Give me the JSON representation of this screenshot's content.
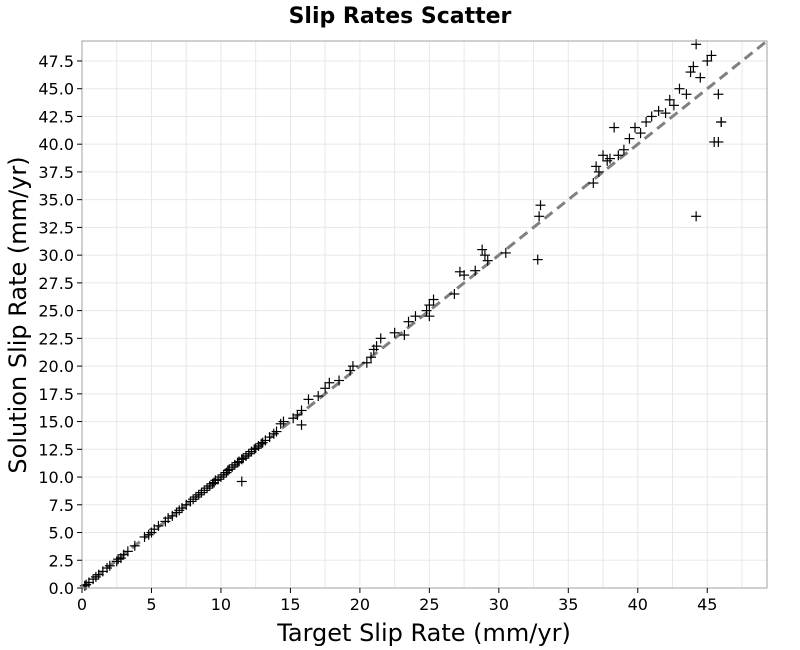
{
  "chart_data": {
    "type": "scatter",
    "title": "Slip Rates Scatter",
    "xlabel": "Target Slip Rate (mm/yr)",
    "ylabel": "Solution Slip Rate (mm/yr)",
    "xlim": [
      0,
      49.3
    ],
    "ylim": [
      0,
      49.3
    ],
    "x_ticks": [
      0,
      5,
      10,
      15,
      20,
      25,
      30,
      35,
      40,
      45
    ],
    "x_tick_labels": [
      "0",
      "5",
      "10",
      "15",
      "20",
      "25",
      "30",
      "35",
      "40",
      "45"
    ],
    "y_ticks": [
      0,
      2.5,
      5,
      7.5,
      10,
      12.5,
      15,
      17.5,
      20,
      22.5,
      25,
      27.5,
      30,
      32.5,
      35,
      37.5,
      40,
      42.5,
      45,
      47.5
    ],
    "y_tick_labels": [
      "0.0",
      "2.5",
      "5.0",
      "7.5",
      "10.0",
      "12.5",
      "15.0",
      "17.5",
      "20.0",
      "22.5",
      "25.0",
      "27.5",
      "30.0",
      "32.5",
      "35.0",
      "37.5",
      "40.0",
      "42.5",
      "45.0",
      "47.5"
    ],
    "grid": true,
    "marker": "+",
    "reference_line": {
      "style": "dashed",
      "color": "#808080",
      "x": [
        0,
        49.3
      ],
      "y": [
        0,
        49.3
      ]
    },
    "x": [
      0.2,
      0.3,
      0.5,
      0.8,
      1.0,
      1.2,
      1.5,
      1.8,
      2.0,
      2.5,
      2.6,
      2.8,
      3.0,
      3.3,
      3.8,
      4.5,
      4.8,
      5.0,
      5.2,
      5.5,
      6.0,
      6.2,
      6.5,
      6.8,
      7.0,
      7.2,
      7.5,
      7.8,
      8.0,
      8.2,
      8.4,
      8.6,
      8.8,
      9.0,
      9.2,
      9.4,
      9.5,
      9.6,
      9.8,
      10.0,
      10.2,
      10.4,
      10.5,
      10.6,
      10.8,
      11.0,
      11.2,
      11.3,
      11.5,
      11.6,
      11.8,
      12.0,
      12.2,
      12.4,
      12.5,
      12.7,
      12.9,
      13.0,
      13.2,
      13.5,
      13.8,
      14.0,
      14.3,
      14.5,
      15.2,
      15.5,
      15.8,
      16.3,
      17.0,
      17.5,
      17.8,
      18.5,
      19.3,
      19.5,
      20.5,
      20.8,
      21.0,
      21.2,
      21.5,
      22.5,
      23.2,
      23.5,
      24.0,
      24.8,
      25.0,
      25.3,
      26.8,
      27.2,
      27.5,
      28.3,
      28.8,
      29.0,
      29.2,
      30.5,
      32.8,
      32.9,
      33.0,
      36.8,
      37.0,
      37.2,
      37.5,
      37.8,
      38.0,
      38.3,
      38.6,
      39.0,
      39.4,
      39.8,
      40.2,
      40.6,
      41.0,
      41.5,
      42.0,
      42.3,
      42.6,
      43.0,
      43.5,
      43.8,
      44.0,
      44.2,
      44.5,
      45.0,
      45.3,
      45.5,
      45.8,
      46.0
    ],
    "y": [
      0.2,
      0.3,
      0.5,
      0.8,
      1.0,
      1.2,
      1.5,
      1.8,
      2.0,
      2.4,
      2.6,
      2.7,
      3.0,
      3.3,
      3.8,
      4.6,
      4.8,
      5.0,
      5.3,
      5.6,
      6.0,
      6.3,
      6.5,
      6.8,
      7.0,
      7.2,
      7.5,
      7.8,
      8.0,
      8.2,
      8.4,
      8.6,
      8.8,
      9.0,
      9.2,
      9.4,
      9.5,
      9.7,
      9.8,
      10.0,
      10.2,
      10.4,
      10.6,
      10.7,
      10.9,
      11.1,
      11.3,
      11.4,
      11.6,
      11.7,
      11.9,
      12.1,
      12.3,
      12.5,
      12.6,
      12.8,
      13.0,
      13.1,
      13.3,
      13.6,
      13.9,
      14.1,
      14.8,
      15.0,
      15.3,
      15.6,
      16.0,
      17.0,
      17.3,
      18.0,
      18.5,
      18.7,
      19.6,
      20.0,
      20.3,
      20.8,
      21.5,
      21.8,
      22.5,
      23.0,
      22.8,
      24.0,
      24.5,
      25.0,
      25.5,
      26.0,
      26.5,
      28.5,
      28.2,
      28.6,
      30.5,
      30.0,
      29.5,
      30.2,
      29.6,
      33.5,
      34.5,
      36.5,
      38.0,
      37.5,
      39.0,
      38.5,
      38.7,
      41.5,
      39.0,
      39.5,
      40.5,
      41.5,
      41.0,
      42.0,
      42.5,
      43.0,
      42.8,
      44.0,
      43.5,
      45.0,
      44.5,
      46.5,
      47.0,
      49.0,
      46.0,
      47.5,
      48.0,
      40.2,
      44.5,
      42.0
    ],
    "outliers": [
      {
        "x": 11.5,
        "y": 9.6
      },
      {
        "x": 15.8,
        "y": 14.7
      },
      {
        "x": 25.0,
        "y": 24.5
      },
      {
        "x": 44.2,
        "y": 33.5
      },
      {
        "x": 45.8,
        "y": 40.2
      },
      {
        "x": 46.0,
        "y": 42.0
      }
    ]
  }
}
